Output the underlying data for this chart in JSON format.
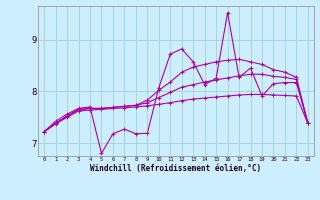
{
  "xlabel": "Windchill (Refroidissement éolien,°C)",
  "background_color": "#cceeff",
  "grid_color": "#99cccc",
  "line_color": "#aa00aa",
  "xlim": [
    -0.5,
    23.5
  ],
  "ylim": [
    6.75,
    9.65
  ],
  "yticks": [
    7,
    8,
    9
  ],
  "xticks": [
    0,
    1,
    2,
    3,
    4,
    5,
    6,
    7,
    8,
    9,
    10,
    11,
    12,
    13,
    14,
    15,
    16,
    17,
    18,
    19,
    20,
    21,
    22,
    23
  ],
  "line1": [
    7.22,
    7.37,
    7.5,
    7.62,
    7.64,
    7.65,
    7.67,
    7.68,
    7.7,
    7.72,
    7.75,
    7.78,
    7.82,
    7.85,
    7.87,
    7.89,
    7.91,
    7.93,
    7.94,
    7.94,
    7.93,
    7.92,
    7.91,
    7.38
  ],
  "line2": [
    7.22,
    7.38,
    7.52,
    7.65,
    7.67,
    7.67,
    7.69,
    7.71,
    7.73,
    7.78,
    7.88,
    7.98,
    8.08,
    8.13,
    8.18,
    8.22,
    8.26,
    8.3,
    8.33,
    8.33,
    8.29,
    8.27,
    8.23,
    7.38
  ],
  "line3": [
    7.22,
    7.38,
    7.52,
    7.65,
    7.67,
    7.67,
    7.69,
    7.71,
    7.73,
    7.83,
    8.02,
    8.18,
    8.37,
    8.47,
    8.52,
    8.57,
    8.6,
    8.62,
    8.57,
    8.52,
    8.42,
    8.37,
    8.27,
    7.38
  ],
  "line4": [
    7.22,
    7.42,
    7.56,
    7.67,
    7.7,
    6.8,
    7.18,
    7.27,
    7.18,
    7.19,
    8.07,
    8.72,
    8.82,
    8.57,
    8.13,
    8.25,
    9.52,
    8.27,
    8.45,
    7.91,
    8.15,
    8.17,
    8.17,
    7.38
  ]
}
